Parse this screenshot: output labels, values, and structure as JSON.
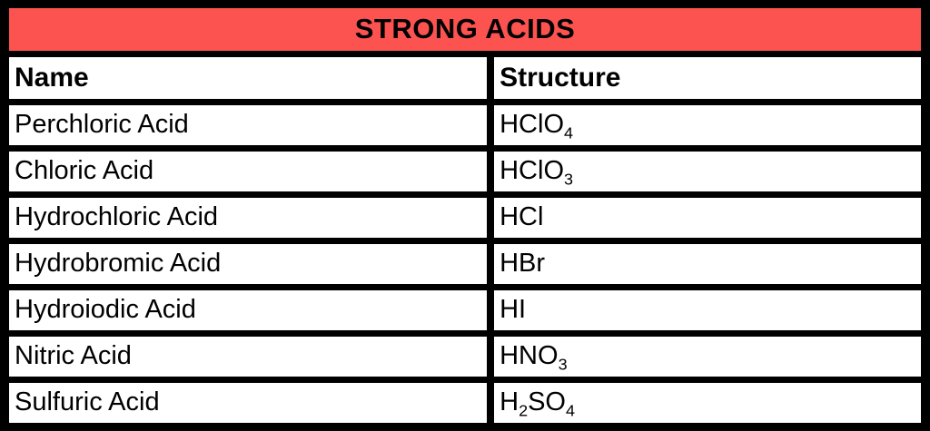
{
  "colors": {
    "header_bg": "#fc5350",
    "border": "#000000",
    "cell_bg": "#ffffff",
    "text": "#000000"
  },
  "chart_data": {
    "type": "table",
    "title": "STRONG ACIDS",
    "columns": [
      "Name",
      "Structure"
    ],
    "rows": [
      {
        "name": "Perchloric Acid",
        "structure": "HClO4",
        "structure_parts": [
          {
            "text": "HClO"
          },
          {
            "text": "4",
            "sub": true
          }
        ]
      },
      {
        "name": "Chloric Acid",
        "structure": "HClO3",
        "structure_parts": [
          {
            "text": "HClO"
          },
          {
            "text": "3",
            "sub": true
          }
        ]
      },
      {
        "name": "Hydrochloric Acid",
        "structure": "HCl",
        "structure_parts": [
          {
            "text": "HCl"
          }
        ]
      },
      {
        "name": "Hydrobromic Acid",
        "structure": "HBr",
        "structure_parts": [
          {
            "text": "HBr"
          }
        ]
      },
      {
        "name": "Hydroiodic Acid",
        "structure": "HI",
        "structure_parts": [
          {
            "text": "HI"
          }
        ]
      },
      {
        "name": "Nitric Acid",
        "structure": "HNO3",
        "structure_parts": [
          {
            "text": "HNO"
          },
          {
            "text": "3",
            "sub": true
          }
        ]
      },
      {
        "name": "Sulfuric Acid",
        "structure": "H2SO4",
        "structure_parts": [
          {
            "text": "H"
          },
          {
            "text": "2",
            "sub": true
          },
          {
            "text": "SO"
          },
          {
            "text": "4",
            "sub": true
          }
        ]
      }
    ]
  }
}
